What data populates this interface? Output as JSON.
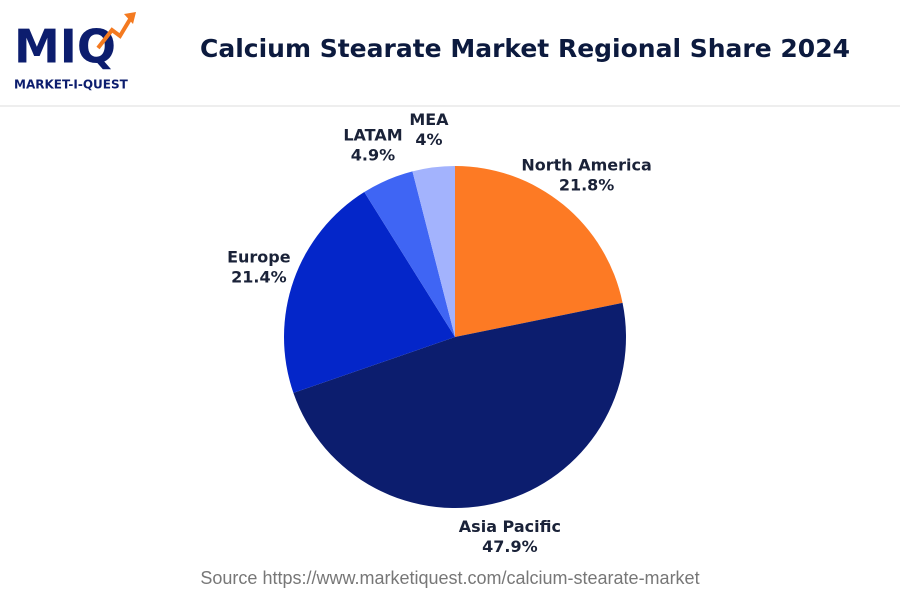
{
  "logo": {
    "mark": "MIQ",
    "name": "MARKET-I-QUEST"
  },
  "chart_data": {
    "type": "pie",
    "title": "Calcium Stearate Market Regional Share 2024",
    "categories": [
      "North America",
      "Asia Pacific",
      "Europe",
      "LATAM",
      "MEA"
    ],
    "values": [
      21.8,
      47.9,
      21.4,
      4.9,
      4
    ],
    "value_labels": [
      "21.8%",
      "47.9%",
      "21.4%",
      "4.9%",
      "4%"
    ],
    "colors": [
      "#fd7a24",
      "#0c1d6e",
      "#0426c9",
      "#3f65f4",
      "#a3b3fd"
    ],
    "source": "Source https://www.marketiquest.com/calcium-stearate-market"
  }
}
